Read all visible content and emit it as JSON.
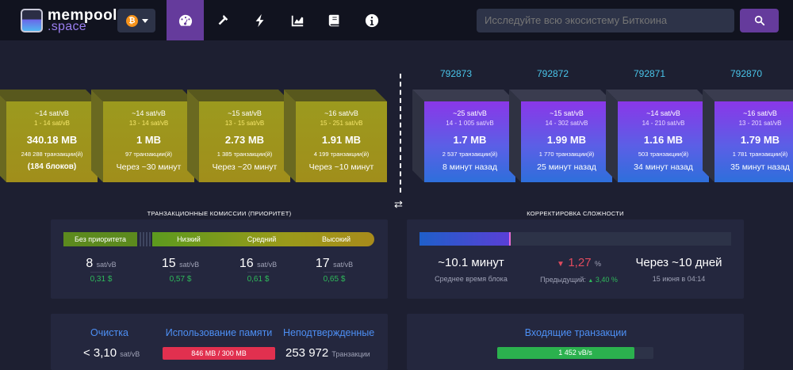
{
  "nav": {
    "logo_line1": "mempool",
    "logo_line2": ".space",
    "network_icon": "bitcoin-icon",
    "network_glyph": "₿",
    "icons": [
      "dashboard-icon",
      "hammer-icon",
      "lightning-icon",
      "graphs-icon",
      "docs-icon",
      "info-icon"
    ],
    "search_placeholder": "Исследуйте всю экосистему Биткоина",
    "accent": "#653b9c"
  },
  "mempool_blocks": [
    {
      "fee": "~14 sat/vB",
      "range": "1 - 14 sat/vB",
      "size": "340.18 MB",
      "tx": "248 288 транзакции(й)",
      "eta": "(184 блоков)"
    },
    {
      "fee": "~14 sat/vB",
      "range": "13 - 14 sat/vB",
      "size": "1 MB",
      "tx": "97 транзакции(й)",
      "eta": "Через ~30 минут"
    },
    {
      "fee": "~15 sat/vB",
      "range": "13 - 15 sat/vB",
      "size": "2.73 MB",
      "tx": "1 385 транзакции(й)",
      "eta": "Через ~20 минут"
    },
    {
      "fee": "~16 sat/vB",
      "range": "15 - 251 sat/vB",
      "size": "1.91 MB",
      "tx": "4 199 транзакции(й)",
      "eta": "Через ~10 минут"
    }
  ],
  "mined_blocks": [
    {
      "height": "792873",
      "fee": "~25 sat/vB",
      "range": "14 - 1 005 sat/vB",
      "size": "1.7 MB",
      "tx": "2 537 транзакции(й)",
      "ago": "8 минут назад"
    },
    {
      "height": "792872",
      "fee": "~15 sat/vB",
      "range": "14 - 302 sat/vB",
      "size": "1.99 MB",
      "tx": "1 770 транзакции(й)",
      "ago": "25 минут назад"
    },
    {
      "height": "792871",
      "fee": "~14 sat/vB",
      "range": "14 - 210 sat/vB",
      "size": "1.16 MB",
      "tx": "503 транзакции(й)",
      "ago": "34 минут назад"
    },
    {
      "height": "792870",
      "fee": "~16 sat/vB",
      "range": "13 - 201 sat/vB",
      "size": "1.79 MB",
      "tx": "1 781 транзакции(й)",
      "ago": "35 минут назад"
    }
  ],
  "fees": {
    "title": "ТРАНЗАКЦИОННЫЕ КОМИССИИ (ПРИОРИТЕТ)",
    "labels": [
      "Без приоритета",
      "Низкий",
      "Средний",
      "Высокий"
    ],
    "values": [
      "8",
      "15",
      "16",
      "17"
    ],
    "unit": "sat/vB",
    "usd": [
      "0,31 $",
      "0,57 $",
      "0,61 $",
      "0,65 $"
    ]
  },
  "difficulty": {
    "title": "КОРРЕКТИРОВКА СЛОЖНОСТИ",
    "progress": 0.29,
    "avg_time": "~10.1 минут",
    "avg_label": "Среднее время блока",
    "change": "1,27",
    "pct": "%",
    "prev_label": "Предыдущий:",
    "prev_value": "3,40 %",
    "next": "Через ~10 дней",
    "next_date": "15 июня в 04:14"
  },
  "stats": {
    "purge_label": "Очистка",
    "purge_value": "< 3,10",
    "purge_unit": "sat/vB",
    "memory_label": "Использование памяти",
    "memory_value": "846 MB / 300 MB",
    "unconfirmed_label": "Неподтвержденные",
    "unconfirmed_value": "253 972",
    "unconfirmed_unit": "Транзакции",
    "incoming_label": "Входящие транзакции",
    "incoming_value": "1 452 vB/s",
    "incoming_fill": 0.88
  }
}
